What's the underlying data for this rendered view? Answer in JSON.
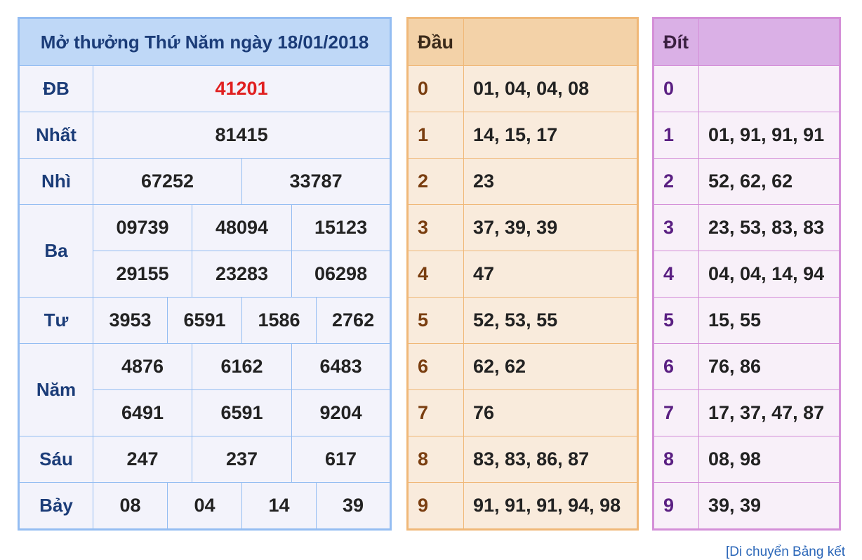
{
  "results": {
    "title": "Mở thưởng Thứ Năm ngày 18/01/2018",
    "rows": {
      "db": {
        "label": "ĐB",
        "values": [
          "41201"
        ]
      },
      "nhat": {
        "label": "Nhất",
        "values": [
          "81415"
        ]
      },
      "nhi": {
        "label": "Nhì",
        "values": [
          "67252",
          "33787"
        ]
      },
      "ba": {
        "label": "Ba",
        "values": [
          "09739",
          "48094",
          "15123",
          "29155",
          "23283",
          "06298"
        ]
      },
      "tu": {
        "label": "Tư",
        "values": [
          "3953",
          "6591",
          "1586",
          "2762"
        ]
      },
      "nam": {
        "label": "Năm",
        "values": [
          "4876",
          "6162",
          "6483",
          "6491",
          "6591",
          "9204"
        ]
      },
      "sau": {
        "label": "Sáu",
        "values": [
          "247",
          "237",
          "617"
        ]
      },
      "bay": {
        "label": "Bảy",
        "values": [
          "08",
          "04",
          "14",
          "39"
        ]
      }
    }
  },
  "dau": {
    "header": "Đầu",
    "rows": [
      {
        "key": "0",
        "values": "01, 04, 04, 08"
      },
      {
        "key": "1",
        "values": "14, 15, 17"
      },
      {
        "key": "2",
        "values": "23"
      },
      {
        "key": "3",
        "values": "37, 39, 39"
      },
      {
        "key": "4",
        "values": "47"
      },
      {
        "key": "5",
        "values": "52, 53, 55"
      },
      {
        "key": "6",
        "values": "62, 62"
      },
      {
        "key": "7",
        "values": "76"
      },
      {
        "key": "8",
        "values": "83, 83, 86, 87"
      },
      {
        "key": "9",
        "values": "91, 91, 91, 94, 98"
      }
    ]
  },
  "dit": {
    "header": "Đít",
    "rows": [
      {
        "key": "0",
        "values": ""
      },
      {
        "key": "1",
        "values": "01, 91, 91, 91"
      },
      {
        "key": "2",
        "values": "52, 62, 62"
      },
      {
        "key": "3",
        "values": "23, 53, 83, 83"
      },
      {
        "key": "4",
        "values": "04, 04, 14, 94"
      },
      {
        "key": "5",
        "values": "15, 55"
      },
      {
        "key": "6",
        "values": "76, 86"
      },
      {
        "key": "7",
        "values": "17, 37, 47, 87"
      },
      {
        "key": "8",
        "values": "08, 98"
      },
      {
        "key": "9",
        "values": "39, 39"
      }
    ]
  },
  "footer": {
    "link_text": "[Di chuyển Bảng kết"
  },
  "colors": {
    "special_prize": "#e02020",
    "blue_border": "#94bdf2",
    "orange_border": "#f0b878",
    "purple_border": "#d48fd8"
  }
}
